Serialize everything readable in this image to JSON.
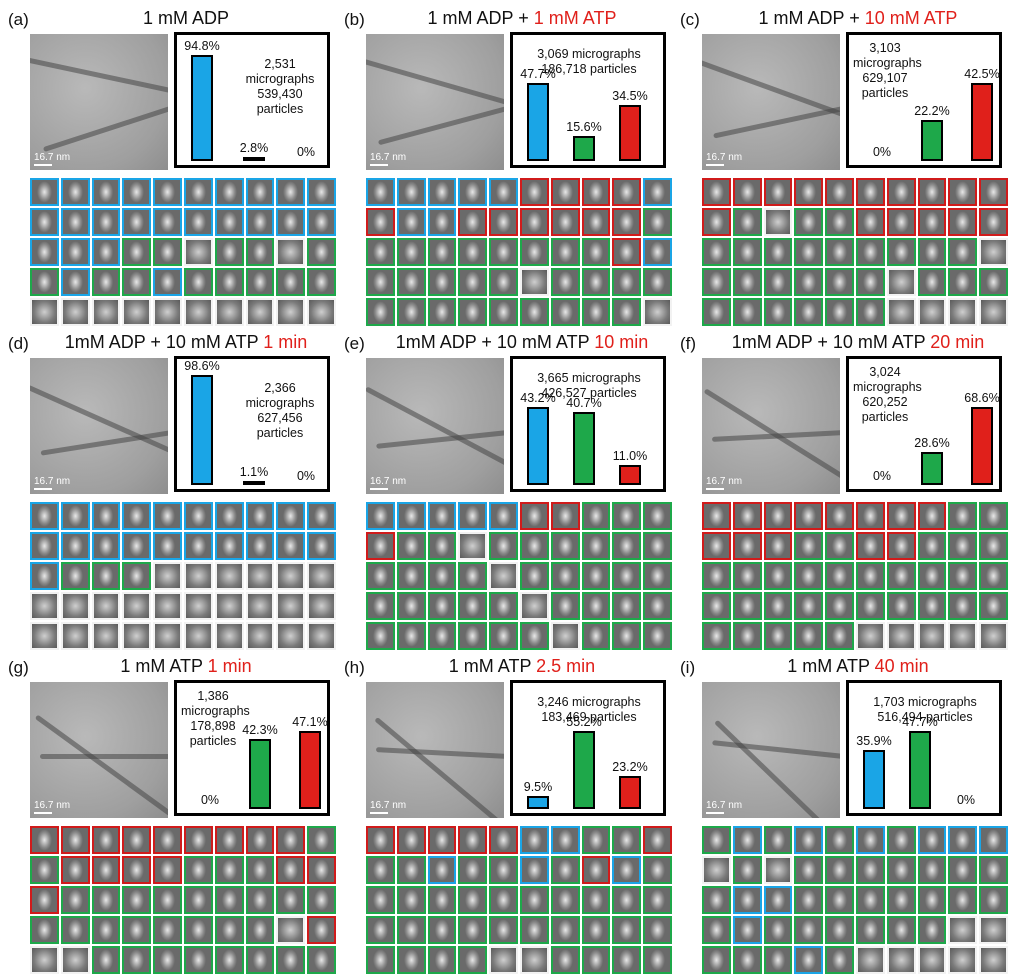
{
  "colors": {
    "blue": "#1aa5e6",
    "green": "#1ea84a",
    "red": "#e0201b",
    "white": "#f2f2f2"
  },
  "panels": [
    {
      "label": "(a)",
      "title_black": "1 mM ADP",
      "title_red": "",
      "scale": "16.7 nm",
      "stats": [
        "2,531",
        "micrographs",
        "539,430",
        "particles"
      ],
      "stats_pos": "right",
      "bars": [
        {
          "value": 94.8,
          "label": "94.8%"
        },
        {
          "value": 2.8,
          "label": "2.8%"
        },
        {
          "value": 0,
          "label": "0%"
        }
      ],
      "grid": [
        "BBBBBBBBBB",
        "BBBBBBBBBB",
        "BBBGGWGGWG",
        "GBGGBGGGGG",
        "WWWWWWWWWW"
      ]
    },
    {
      "label": "(b)",
      "title_black": "1 mM ADP + ",
      "title_red": "1 mM ATP",
      "scale": "16.7 nm",
      "stats": [
        "3,069 micrographs",
        "186,718 particles"
      ],
      "stats_pos": "top",
      "bars": [
        {
          "value": 47.7,
          "label": "47.7%"
        },
        {
          "value": 15.6,
          "label": "15.6%"
        },
        {
          "value": 34.5,
          "label": "34.5%"
        }
      ],
      "grid": [
        "BBBBBRRRRB",
        "RBBRRRRRRG",
        "GGGGGGGGRB",
        "GGGGGWGGGG",
        "GGGGGGGGGW"
      ]
    },
    {
      "label": "(c)",
      "title_black": "1 mM ADP + ",
      "title_red": "10 mM ATP",
      "scale": "16.7 nm",
      "stats": [
        "3,103",
        "micrographs",
        "629,107",
        "particles"
      ],
      "stats_pos": "left",
      "bars": [
        {
          "value": 0,
          "label": "0%"
        },
        {
          "value": 22.2,
          "label": "22.2%"
        },
        {
          "value": 42.5,
          "label": "42.5%"
        }
      ],
      "grid": [
        "RRRRRRRRRR",
        "RGWGGRRRRR",
        "GGGGGGGGGW",
        "GGGGGGWGGG",
        "GGGGGGWWWW"
      ]
    },
    {
      "label": "(d)",
      "title_black": "1mM ADP + 10 mM ATP ",
      "title_red": "1 min",
      "scale": "16.7 nm",
      "stats": [
        "2,366",
        "micrographs",
        "627,456",
        "particles"
      ],
      "stats_pos": "right",
      "bars": [
        {
          "value": 98.6,
          "label": "98.6%"
        },
        {
          "value": 1.1,
          "label": "1.1%"
        },
        {
          "value": 0,
          "label": "0%"
        }
      ],
      "grid": [
        "BBBBBBBBBB",
        "BBBBBBBBBB",
        "BGGGWWWWWW",
        "WWWWWWWWWW",
        "WWWWWWWWWW"
      ]
    },
    {
      "label": "(e)",
      "title_black": "1mM ADP + 10 mM ATP ",
      "title_red": "10 min",
      "scale": "16.7 nm",
      "stats": [
        "3,665 micrographs",
        "426,527 particles"
      ],
      "stats_pos": "top",
      "bars": [
        {
          "value": 43.2,
          "label": "43.2%"
        },
        {
          "value": 40.7,
          "label": "40.7%"
        },
        {
          "value": 11.0,
          "label": "11.0%"
        }
      ],
      "grid": [
        "BBBBBRRGGG",
        "RGGWGGGGGG",
        "GGGGWGGGGG",
        "GGGGGWGGGG",
        "GGGGGGWGGG"
      ]
    },
    {
      "label": "(f)",
      "title_black": "1mM ADP + 10 mM ATP ",
      "title_red": "20 min",
      "scale": "16.7 nm",
      "stats": [
        "3,024",
        "micrographs",
        "620,252",
        "particles"
      ],
      "stats_pos": "left",
      "bars": [
        {
          "value": 0,
          "label": "0%"
        },
        {
          "value": 28.6,
          "label": "28.6%"
        },
        {
          "value": 68.6,
          "label": "68.6%"
        }
      ],
      "grid": [
        "RRRRRRRRGG",
        "RRRGGRRGGG",
        "GGGGGGGGGG",
        "GGGGGGGGGG",
        "GGGGGWWWWW"
      ]
    },
    {
      "label": "(g)",
      "title_black": "1 mM ATP ",
      "title_red": "1 min",
      "scale": "16.7 nm",
      "stats": [
        "1,386",
        "micrographs",
        "178,898",
        "particles"
      ],
      "stats_pos": "left",
      "bars": [
        {
          "value": 0,
          "label": "0%"
        },
        {
          "value": 42.3,
          "label": "42.3%"
        },
        {
          "value": 47.1,
          "label": "47.1%"
        }
      ],
      "grid": [
        "RRRRRRRRRG",
        "GRRRRGGGRR",
        "RGGGGGGGGG",
        "GGGGGGGGWR",
        "WWGGGGGGGG"
      ]
    },
    {
      "label": "(h)",
      "title_black": "1 mM ATP ",
      "title_red": "2.5 min",
      "scale": "16.7 nm",
      "stats": [
        "3,246 micrographs",
        "183,469 particles"
      ],
      "stats_pos": "top",
      "bars": [
        {
          "value": 9.5,
          "label": "9.5%"
        },
        {
          "value": 55.2,
          "label": "55.2%"
        },
        {
          "value": 23.2,
          "label": "23.2%"
        }
      ],
      "grid": [
        "RRRRRBBGGR",
        "GGBGGBGRBG",
        "GGGGGGGGGG",
        "GGGGGGGGGG",
        "GGGGWWGGGG"
      ]
    },
    {
      "label": "(i)",
      "title_black": "1 mM ATP ",
      "title_red": "40 min",
      "scale": "16.7 nm",
      "stats": [
        "1,703 micrographs",
        "516,494 particles"
      ],
      "stats_pos": "top",
      "bars": [
        {
          "value": 35.9,
          "label": "35.9%"
        },
        {
          "value": 47.7,
          "label": "47.7%"
        },
        {
          "value": 0,
          "label": "0%"
        }
      ],
      "grid": [
        "GBGBGBGBBB",
        "WGWGGGGGGG",
        "GBBGGGGGGG",
        "GBGGGGGGWW",
        "GGGBGWWWWW"
      ]
    }
  ]
}
